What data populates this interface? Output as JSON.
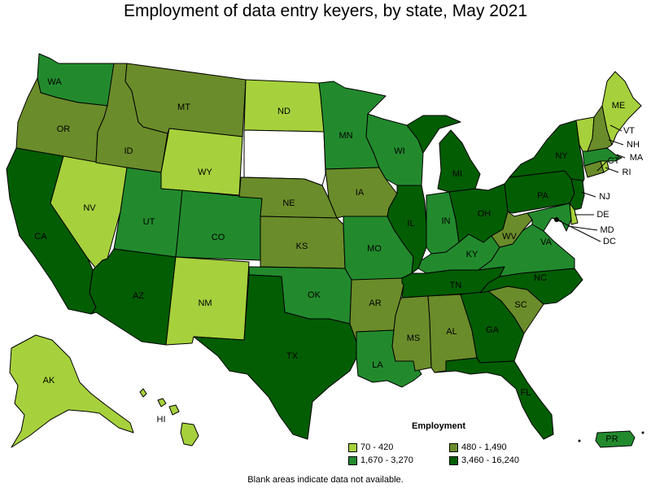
{
  "title": "Employment of data entry keyers, by state, May 2021",
  "footnote": "Blank areas indicate data not available.",
  "legend": {
    "title": "Employment",
    "bins": [
      {
        "label": "70 - 420",
        "color": "#a6d13c"
      },
      {
        "label": "480 - 1,490",
        "color": "#6b8c2a"
      },
      {
        "label": "1,670 - 3,270",
        "color": "#228a2d"
      },
      {
        "label": "3,460 - 16,240",
        "color": "#035d03"
      }
    ]
  },
  "states": {
    "WA": 2,
    "OR": 1,
    "CA": 3,
    "NV": 0,
    "ID": 1,
    "MT": 1,
    "WY": 0,
    "UT": 2,
    "CO": 2,
    "AZ": 3,
    "NM": 0,
    "ND": 0,
    "SD": -1,
    "NE": 1,
    "KS": 1,
    "OK": 2,
    "TX": 3,
    "MN": 2,
    "IA": 1,
    "MO": 2,
    "AR": 1,
    "LA": 2,
    "WI": 2,
    "IL": 3,
    "MI": 3,
    "IN": 2,
    "OH": 3,
    "KY": 2,
    "TN": 3,
    "MS": 1,
    "AL": 1,
    "GA": 3,
    "FL": 3,
    "SC": 1,
    "NC": 3,
    "VA": 2,
    "WV": 1,
    "PA": 3,
    "NY": 3,
    "NJ": 3,
    "DE": 0,
    "MD": 2,
    "DC": 2,
    "CT": 1,
    "RI": 0,
    "MA": 2,
    "VT": 0,
    "NH": 1,
    "ME": 0,
    "AK": 0,
    "HI": 0,
    "PR": 2
  },
  "labels": {
    "WA": "WA",
    "OR": "OR",
    "CA": "CA",
    "NV": "NV",
    "ID": "ID",
    "MT": "MT",
    "WY": "WY",
    "UT": "UT",
    "CO": "CO",
    "AZ": "AZ",
    "NM": "NM",
    "ND": "ND",
    "NE": "NE",
    "KS": "KS",
    "OK": "OK",
    "TX": "TX",
    "MN": "MN",
    "IA": "IA",
    "MO": "MO",
    "AR": "AR",
    "LA": "LA",
    "WI": "WI",
    "IL": "IL",
    "MI": "MI",
    "IN": "IN",
    "OH": "OH",
    "KY": "KY",
    "TN": "TN",
    "MS": "MS",
    "AL": "AL",
    "GA": "GA",
    "FL": "FL",
    "SC": "SC",
    "NC": "NC",
    "VA": "VA",
    "WV": "WV",
    "PA": "PA",
    "NY": "NY",
    "NJ": "NJ",
    "DE": "DE",
    "MD": "MD",
    "DC": "DC",
    "CT": "CT",
    "RI": "RI",
    "MA": "MA",
    "VT": "VT",
    "NH": "NH",
    "ME": "ME",
    "AK": "AK",
    "HI": "HI",
    "PR": "PR"
  }
}
